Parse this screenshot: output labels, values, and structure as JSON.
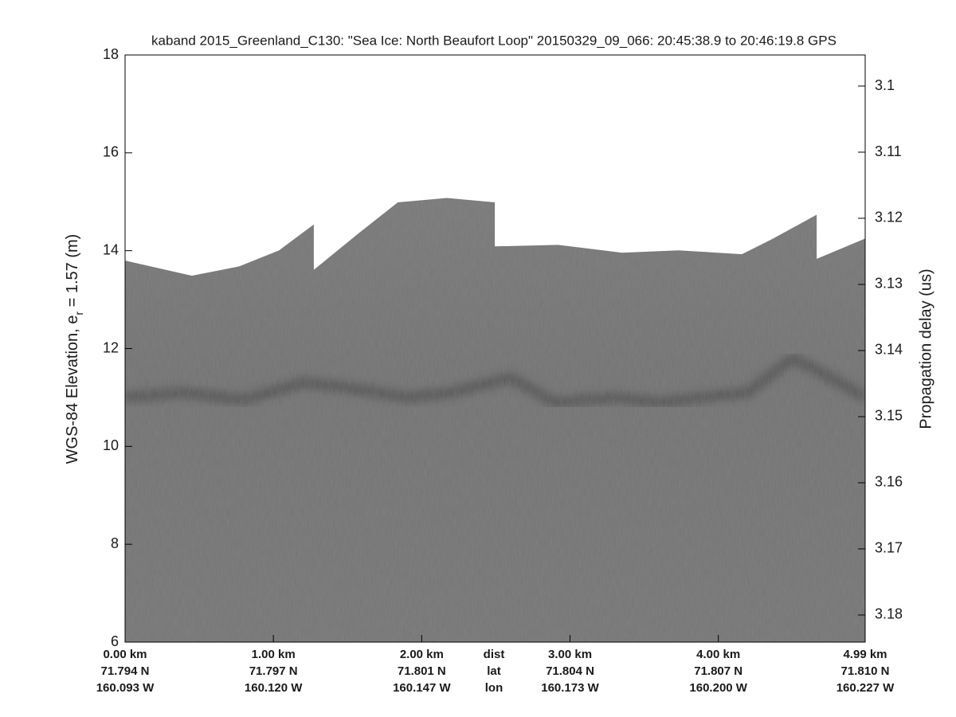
{
  "chart_data": {
    "type": "echogram",
    "title": "kaband 2015_Greenland_C130: \"Sea Ice: North Beaufort Loop\"  20150329_09_066: 20:45:38.9 to 20:46:19.8 GPS",
    "ylabel": {
      "before": "WGS-84 Elevation, e",
      "sub": "r",
      "after": " = 1.57 (m)"
    },
    "y2label": "Propagation delay (us)",
    "xlim": [
      0,
      4.99
    ],
    "xticks": [
      {
        "value": 0,
        "label": "0.00 km"
      },
      {
        "value": 1,
        "label": "1.00 km"
      },
      {
        "value": 2,
        "label": "2.00 km"
      },
      {
        "value": 3,
        "label": "3.00 km"
      },
      {
        "value": 4,
        "label": "4.00 km"
      },
      {
        "value": 4.99,
        "label": "4.99 km"
      }
    ],
    "lat_labels": [
      "71.794 N",
      "71.797 N",
      "71.801 N",
      "71.804 N",
      "71.807 N",
      "71.810 N"
    ],
    "lon_labels": [
      "160.093 W",
      "160.120 W",
      "160.147 W",
      "160.173 W",
      "160.200 W",
      "160.227 W"
    ],
    "row_labels": [
      "dist",
      "lat",
      "lon"
    ],
    "ylim": [
      6,
      18
    ],
    "yticks": [
      6,
      8,
      10,
      12,
      14,
      16,
      18
    ],
    "y2lim": [
      3.0953,
      3.1841
    ],
    "y2_reversed": true,
    "y2ticks": [
      3.1,
      3.11,
      3.12,
      3.13,
      3.14,
      3.15,
      3.16,
      3.17,
      3.18
    ],
    "surface": {
      "color": "#7b7b7b",
      "x": [
        0,
        0.45,
        0.77,
        1.04,
        1.27,
        1.27,
        1.58,
        1.84,
        2.17,
        2.49,
        2.49,
        2.92,
        3.35,
        3.73,
        4.16,
        4.37,
        4.66,
        4.66,
        4.99
      ],
      "values": [
        13.79,
        13.48,
        13.67,
        14.0,
        14.52,
        13.59,
        14.36,
        14.98,
        15.07,
        14.98,
        14.08,
        14.11,
        13.95,
        14.0,
        13.92,
        14.24,
        14.72,
        13.82,
        14.24
      ]
    },
    "layer": {
      "color": "#3c3c3c",
      "x": [
        0,
        0.4,
        0.8,
        1.2,
        1.5,
        1.9,
        2.2,
        2.6,
        2.9,
        3.3,
        3.6,
        3.9,
        4.2,
        4.5,
        4.7,
        4.99
      ],
      "values": [
        11.0,
        11.1,
        10.95,
        11.3,
        11.2,
        11.0,
        11.1,
        11.4,
        10.9,
        11.0,
        10.9,
        11.0,
        11.1,
        11.8,
        11.5,
        11.0
      ]
    }
  }
}
